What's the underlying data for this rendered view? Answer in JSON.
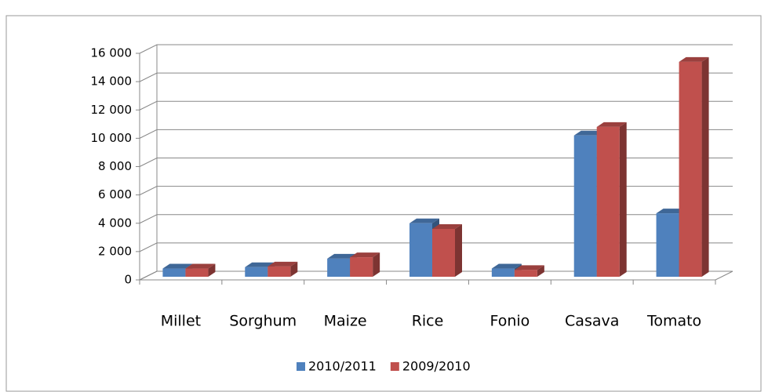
{
  "chart_data": {
    "type": "bar3d",
    "categories": [
      "Millet",
      "Sorghum",
      "Maize",
      "Rice",
      "Fonio",
      "Casava",
      "Tomato"
    ],
    "series": [
      {
        "name": "2010/2011",
        "color": "#4f81bd",
        "values": [
          800,
          900,
          1500,
          4000,
          800,
          10200,
          4700
        ]
      },
      {
        "name": "2009/2010",
        "color": "#c0504d",
        "values": [
          800,
          950,
          1600,
          3600,
          700,
          10800,
          15400
        ]
      }
    ],
    "ylim": [
      0,
      16000
    ],
    "yticks": [
      0,
      {
        "value": 2000,
        "label": "2 000"
      },
      {
        "value": 4000,
        "label": "4 000"
      },
      {
        "value": 6000,
        "label": "6 000"
      },
      {
        "value": 8000,
        "label": "8 000"
      },
      {
        "value": 10000,
        "label": "10 000"
      },
      {
        "value": 12000,
        "label": "12 000"
      },
      {
        "value": 14000,
        "label": "14 000"
      },
      {
        "value": 16000,
        "label": "16 000"
      }
    ],
    "grid": true,
    "legend": "bottom"
  }
}
